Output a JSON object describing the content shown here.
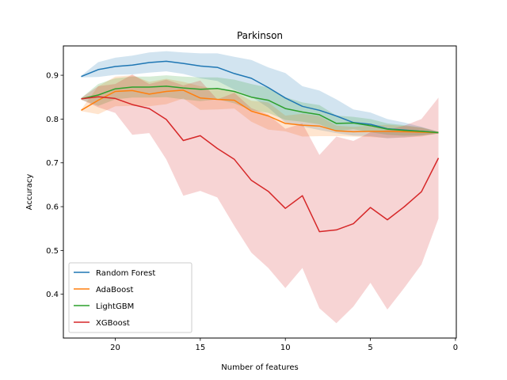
{
  "chart_data": {
    "type": "line",
    "title": "Parkinson",
    "xlabel": "Number of features",
    "ylabel": "Accuracy",
    "xlim": [
      23.05,
      -0.05
    ],
    "ylim": [
      0.3,
      0.45
    ],
    "ylim_actual": [
      0.3,
      0.967
    ],
    "x_ticks": [
      20,
      15,
      10,
      5,
      0
    ],
    "y_ticks": [
      0.4,
      0.5,
      0.6,
      0.7,
      0.8,
      0.9
    ],
    "legend_position": "lower-left",
    "grid": false,
    "x": [
      22,
      21,
      20,
      19,
      18,
      17,
      16,
      15,
      14,
      13,
      12,
      11,
      10,
      9,
      8,
      7,
      6,
      5,
      4,
      3,
      2,
      1
    ],
    "series": [
      {
        "name": "Random Forest",
        "color": "#1f77b4",
        "values": [
          0.897,
          0.913,
          0.92,
          0.923,
          0.929,
          0.932,
          0.927,
          0.921,
          0.918,
          0.904,
          0.893,
          0.872,
          0.848,
          0.829,
          0.82,
          0.807,
          0.792,
          0.788,
          0.778,
          0.775,
          0.772,
          0.769
        ],
        "upper": [
          0.899,
          0.93,
          0.94,
          0.945,
          0.952,
          0.955,
          0.952,
          0.95,
          0.95,
          0.942,
          0.935,
          0.918,
          0.905,
          0.875,
          0.865,
          0.845,
          0.822,
          0.815,
          0.8,
          0.792,
          0.782,
          0.771
        ],
        "lower": [
          0.895,
          0.896,
          0.901,
          0.902,
          0.906,
          0.909,
          0.903,
          0.893,
          0.887,
          0.867,
          0.851,
          0.826,
          0.792,
          0.783,
          0.775,
          0.768,
          0.762,
          0.761,
          0.756,
          0.758,
          0.762,
          0.767
        ]
      },
      {
        "name": "AdaBoost",
        "color": "#ff7f0e",
        "values": [
          0.82,
          0.843,
          0.863,
          0.865,
          0.857,
          0.863,
          0.866,
          0.848,
          0.845,
          0.843,
          0.818,
          0.807,
          0.79,
          0.786,
          0.784,
          0.773,
          0.771,
          0.772,
          0.772,
          0.771,
          0.77,
          0.769
        ],
        "upper": [
          0.822,
          0.875,
          0.897,
          0.9,
          0.885,
          0.892,
          0.885,
          0.875,
          0.868,
          0.862,
          0.842,
          0.838,
          0.808,
          0.812,
          0.807,
          0.785,
          0.782,
          0.785,
          0.787,
          0.784,
          0.78,
          0.771
        ],
        "lower": [
          0.818,
          0.811,
          0.829,
          0.83,
          0.829,
          0.834,
          0.847,
          0.821,
          0.822,
          0.824,
          0.794,
          0.776,
          0.772,
          0.76,
          0.761,
          0.761,
          0.76,
          0.759,
          0.757,
          0.758,
          0.76,
          0.767
        ]
      },
      {
        "name": "LightGBM",
        "color": "#2ca02c",
        "values": [
          0.846,
          0.855,
          0.869,
          0.873,
          0.873,
          0.875,
          0.871,
          0.868,
          0.87,
          0.863,
          0.85,
          0.843,
          0.824,
          0.816,
          0.81,
          0.79,
          0.791,
          0.785,
          0.777,
          0.774,
          0.772,
          0.769
        ],
        "upper": [
          0.848,
          0.88,
          0.893,
          0.897,
          0.897,
          0.9,
          0.897,
          0.895,
          0.895,
          0.89,
          0.88,
          0.872,
          0.85,
          0.838,
          0.832,
          0.808,
          0.805,
          0.8,
          0.79,
          0.786,
          0.781,
          0.771
        ],
        "lower": [
          0.844,
          0.83,
          0.845,
          0.849,
          0.849,
          0.85,
          0.845,
          0.841,
          0.845,
          0.836,
          0.82,
          0.814,
          0.798,
          0.794,
          0.788,
          0.772,
          0.777,
          0.77,
          0.764,
          0.762,
          0.763,
          0.767
        ]
      },
      {
        "name": "XGBoost",
        "color": "#d62728",
        "values": [
          0.846,
          0.851,
          0.847,
          0.833,
          0.824,
          0.799,
          0.751,
          0.762,
          0.733,
          0.708,
          0.66,
          0.635,
          0.596,
          0.625,
          0.543,
          0.547,
          0.561,
          0.598,
          0.57,
          0.6,
          0.634,
          0.711
        ],
        "upper": [
          0.848,
          0.875,
          0.88,
          0.902,
          0.88,
          0.89,
          0.877,
          0.888,
          0.845,
          0.86,
          0.825,
          0.81,
          0.778,
          0.79,
          0.718,
          0.76,
          0.75,
          0.77,
          0.775,
          0.785,
          0.8,
          0.849
        ],
        "lower": [
          0.844,
          0.827,
          0.814,
          0.764,
          0.768,
          0.708,
          0.625,
          0.636,
          0.621,
          0.556,
          0.495,
          0.46,
          0.414,
          0.46,
          0.368,
          0.334,
          0.372,
          0.426,
          0.365,
          0.415,
          0.468,
          0.573
        ]
      }
    ]
  }
}
